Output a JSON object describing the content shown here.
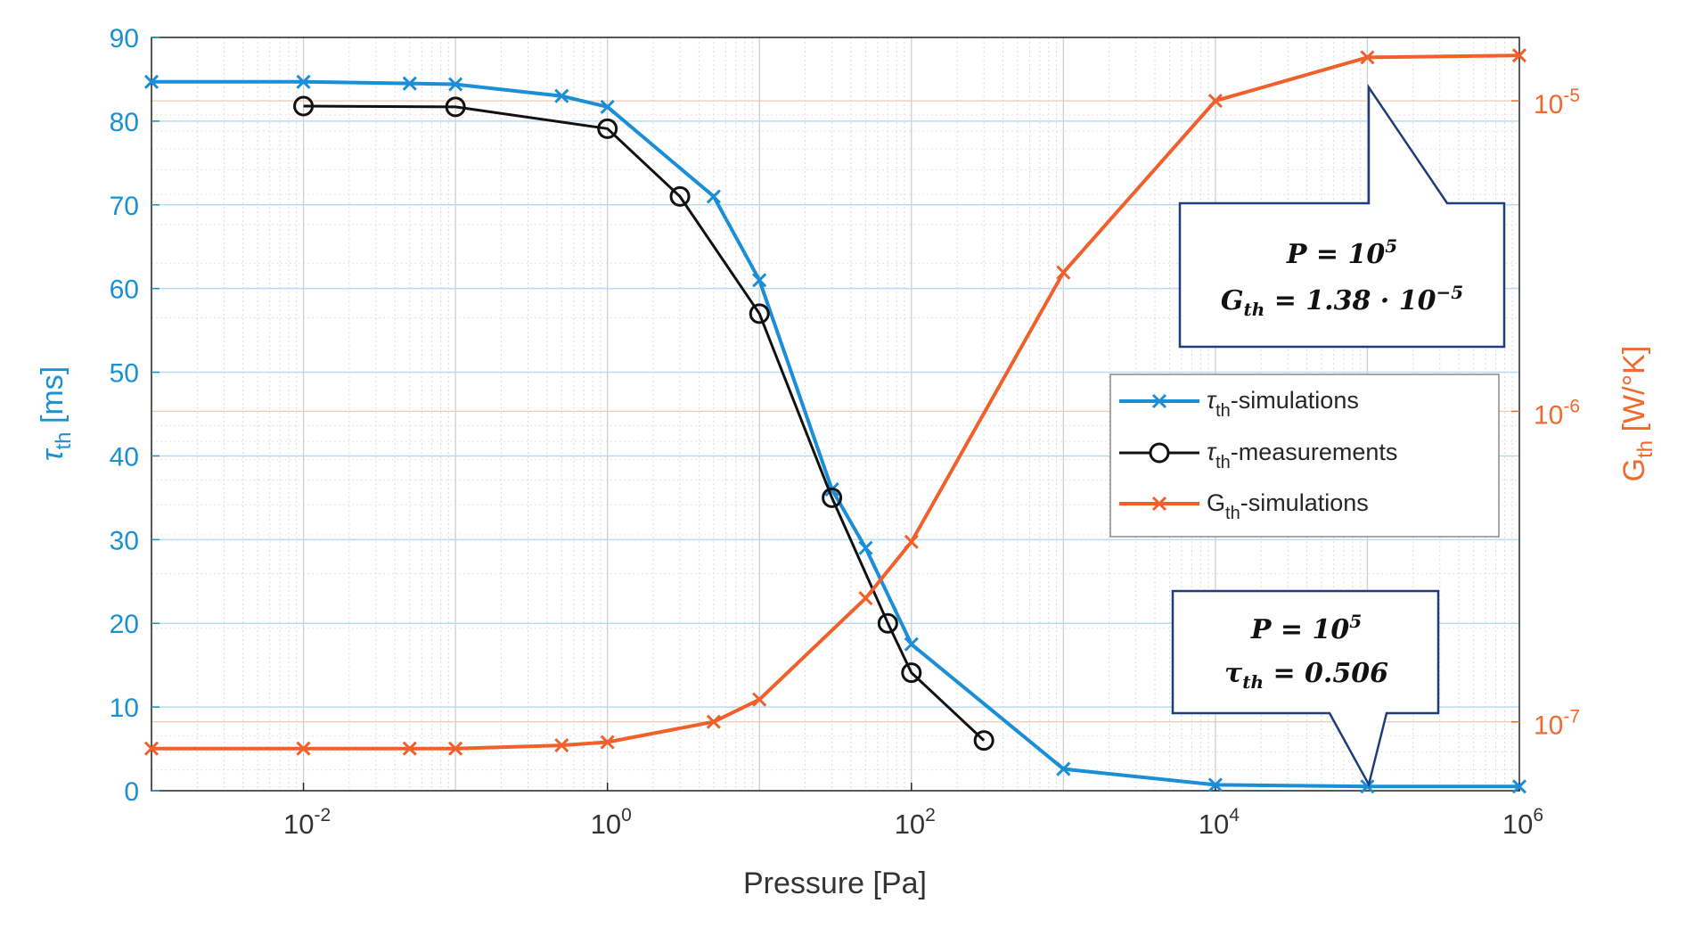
{
  "chart_data": {
    "type": "line",
    "xlabel": "Pressure [Pa]",
    "ylabel_left": "τth [ms]",
    "ylabel_right": "Gth [W/°K]",
    "x_scale": "log",
    "xlim": [
      0.001,
      1000000
    ],
    "ylim_left": [
      0,
      90
    ],
    "ylim_right_log": [
      6e-08,
      1.6e-05
    ],
    "grid": true,
    "left_ticks": [
      "0",
      "10",
      "20",
      "30",
      "40",
      "50",
      "60",
      "70",
      "80",
      "90"
    ],
    "right_ticks": [
      {
        "base": "10",
        "exp": "-7"
      },
      {
        "base": "10",
        "exp": "-6"
      },
      {
        "base": "10",
        "exp": "-5"
      }
    ],
    "x_ticks": [
      {
        "base": "10",
        "exp": "-2"
      },
      {
        "base": "10",
        "exp": "0"
      },
      {
        "base": "10",
        "exp": "2"
      },
      {
        "base": "10",
        "exp": "4"
      },
      {
        "base": "10",
        "exp": "6"
      }
    ],
    "series": [
      {
        "name": "τth-simulations",
        "legend_main": "τ",
        "legend_sub": "th",
        "legend_rest": "-simulations",
        "axis": "left",
        "color": "#1a8ed6",
        "marker": "x",
        "x": [
          0.001,
          0.01,
          0.05,
          0.1,
          0.5,
          1,
          5,
          10,
          30,
          50,
          100,
          1000,
          10000,
          100000,
          1000000
        ],
        "y": [
          84.7,
          84.7,
          84.5,
          84.4,
          83.0,
          81.7,
          71.0,
          61.0,
          36.0,
          29.0,
          17.5,
          2.6,
          0.7,
          0.506,
          0.5
        ]
      },
      {
        "name": "τth-measurements",
        "legend_main": "τ",
        "legend_sub": "th",
        "legend_rest": "-measurements",
        "axis": "left",
        "color": "#111111",
        "marker": "o",
        "x": [
          0.01,
          0.1,
          1,
          3,
          10,
          30,
          70,
          100,
          300
        ],
        "y": [
          81.8,
          81.7,
          79.1,
          71.0,
          57.0,
          35.0,
          20.0,
          14.1,
          6.0
        ]
      },
      {
        "name": "Gth-simulations",
        "legend_main": "G",
        "legend_sub": "th",
        "legend_rest": "-simulations",
        "axis": "right",
        "color": "#f0602a",
        "marker": "x",
        "x": [
          0.001,
          0.01,
          0.05,
          0.1,
          0.5,
          1,
          5,
          10,
          50,
          100,
          1000,
          10000,
          100000,
          1000000
        ],
        "y": [
          8.2e-08,
          8.2e-08,
          8.2e-08,
          8.2e-08,
          8.4e-08,
          8.6e-08,
          1e-07,
          1.18e-07,
          2.5e-07,
          3.8e-07,
          2.8e-06,
          1e-05,
          1.38e-05,
          1.4e-05
        ]
      }
    ],
    "annotations": [
      {
        "line1_prefix": "P = 10",
        "line1_sup": "5",
        "line2_lhs": "G",
        "line2_sub": "th",
        "line2_rhs": " = 1.38 · 10",
        "line2_sup": "−5",
        "point_x": 100000,
        "point_y_right": 1.38e-05
      },
      {
        "line1_prefix": "P = 10",
        "line1_sup": "5",
        "line2_lhs": "τ",
        "line2_sub": "th",
        "line2_rhs": " = 0.506",
        "line2_sup": "",
        "point_x": 100000,
        "point_y_left": 0.506
      }
    ],
    "legend_position": "center-right"
  }
}
